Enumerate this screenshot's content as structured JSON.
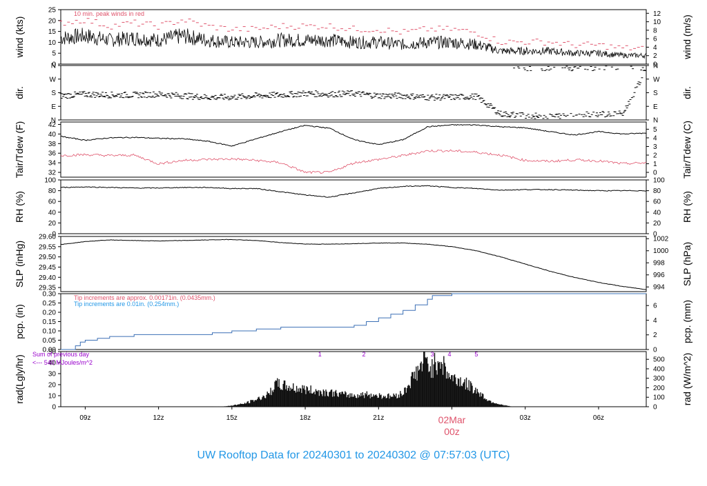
{
  "title": "UW Rooftop Data for 20240301  to  20240302 @ 07:57:03  (UTC)",
  "colors": {
    "axis": "#000000",
    "peak": "#DF536B",
    "dewpoint": "#DF536B",
    "precip": "#2297E6",
    "radiation_note": "#9900CC",
    "title": "#2297E6",
    "date_label": "#DF536B"
  },
  "x_axis": {
    "start_hour": 8.0,
    "end_hour": 31.95,
    "ticks": [
      {
        "hour": 9,
        "label": "09z"
      },
      {
        "hour": 12,
        "label": "12z"
      },
      {
        "hour": 15,
        "label": "15z"
      },
      {
        "hour": 18,
        "label": "18z"
      },
      {
        "hour": 21,
        "label": "21z"
      },
      {
        "hour": 24,
        "label": ""
      },
      {
        "hour": 27,
        "label": "03z"
      },
      {
        "hour": 30,
        "label": "06z"
      }
    ],
    "day_label": "02Mar",
    "day_sub": "00z"
  },
  "panels": {
    "wind": {
      "left_label": "wind (kts)",
      "right_label": "wind (m/s)",
      "left_ticks": [
        "0",
        "5",
        "10",
        "15",
        "20",
        "25"
      ],
      "right_ticks": [
        "0",
        "2",
        "4",
        "6",
        "8",
        "10",
        "12"
      ],
      "note": "10 min. peak winds in red",
      "ylim": [
        0,
        25
      ]
    },
    "dir": {
      "left_label": "dir.",
      "right_label": "dir.",
      "ticks": [
        "N",
        "E",
        "S",
        "W",
        "N"
      ],
      "ylim": [
        0,
        360
      ]
    },
    "temp": {
      "left_label": "Tair/Tdew (F)",
      "right_label": "Tair/Tdew (C)",
      "left_ticks": [
        "32",
        "34",
        "36",
        "38",
        "40",
        "42"
      ],
      "right_ticks": [
        "0",
        "1",
        "2",
        "3",
        "4",
        "5"
      ],
      "ylim": [
        31,
        42.5
      ]
    },
    "rh": {
      "left_label": "RH (%)",
      "right_label": "RH (%)",
      "left_ticks": [
        "0",
        "20",
        "40",
        "60",
        "80",
        "100"
      ],
      "right_ticks": [
        "0",
        "20",
        "40",
        "60",
        "80",
        "100"
      ],
      "ylim": [
        0,
        100
      ]
    },
    "slp": {
      "left_label": "SLP (inHg)",
      "right_label": "SLP (hPa)",
      "left_ticks": [
        "29.35",
        "29.40",
        "29.45",
        "29.50",
        "29.55",
        "29.60"
      ],
      "right_ticks": [
        "994",
        "996",
        "998",
        "1000",
        "1002"
      ],
      "ylim": [
        29.33,
        29.6
      ]
    },
    "pcp": {
      "left_label": "pcp. (in)",
      "right_label": "pcp. (mm)",
      "left_ticks": [
        "0.00",
        "0.05",
        "0.10",
        "0.15",
        "0.20",
        "0.25",
        "0.30"
      ],
      "right_ticks": [
        "0",
        "2",
        "4",
        "6"
      ],
      "note1": "Tip increments are approx. 0.00171in. (0.0435mm.)",
      "note2": "Tip increments are 0.01in. (0.254mm.)",
      "ylim": [
        0,
        0.3
      ]
    },
    "rad": {
      "left_label": "rad(Lgly/hr)",
      "right_label": "rad (W/m^2)",
      "left_ticks": [
        "0",
        "10",
        "20",
        "30",
        "40",
        "50"
      ],
      "right_ticks": [
        "0",
        "100",
        "200",
        "300",
        "400",
        "500"
      ],
      "note1": "Sum of previous day",
      "note2": "<--- 540 MJoules/m^2",
      "markers": [
        "1",
        "2",
        "3",
        "4",
        "5"
      ],
      "ylim": [
        0,
        50
      ]
    }
  },
  "chart_data": [
    {
      "type": "line",
      "title": "",
      "xlabel": "",
      "ylabel": "wind (kts)",
      "ylim": [
        0,
        25
      ],
      "series": [
        {
          "x": [
            8,
            9,
            10,
            11,
            12,
            13,
            14,
            15,
            16,
            17,
            18,
            19,
            20,
            21,
            22,
            23,
            24,
            25,
            26,
            27,
            28,
            29,
            30,
            31,
            31.95
          ],
          "values": [
            12,
            13,
            11,
            12,
            11,
            13,
            11,
            10,
            10,
            11,
            11,
            11,
            10,
            10,
            9,
            10,
            10,
            9,
            6,
            6,
            6,
            5,
            5,
            4,
            4
          ]
        }
      ]
    },
    {
      "type": "scatter",
      "title": "",
      "xlabel": "",
      "ylabel": "dir.",
      "ylim": [
        0,
        360
      ],
      "series": [
        {
          "x": [
            8,
            9,
            10,
            11,
            12,
            13,
            14,
            15,
            16,
            17,
            18,
            19,
            20,
            21,
            22,
            23,
            24,
            25,
            26,
            27,
            28,
            29,
            30,
            31,
            31.95
          ],
          "values": [
            160,
            170,
            165,
            165,
            170,
            160,
            150,
            150,
            160,
            165,
            175,
            170,
            175,
            160,
            160,
            150,
            150,
            155,
            40,
            30,
            20,
            40,
            40,
            40,
            330
          ]
        }
      ]
    },
    {
      "type": "line",
      "title": "",
      "xlabel": "",
      "ylabel": "Tair/Tdew (F)",
      "ylim": [
        31,
        42.5
      ],
      "series": [
        {
          "name": "",
          "x": [
            8,
            9,
            10,
            11,
            12,
            13,
            14,
            15,
            16,
            17,
            18,
            19,
            20,
            21,
            22,
            23,
            24,
            25,
            26,
            27,
            28,
            29,
            30,
            31,
            31.95
          ],
          "values": [
            39.5,
            38.7,
            39.2,
            39.3,
            39.1,
            39.0,
            38.5,
            37.5,
            39.0,
            40.5,
            41.8,
            41.2,
            38.8,
            37.8,
            38.8,
            41.5,
            41.9,
            41.9,
            41.5,
            41.3,
            40.5,
            39.8,
            40.5,
            40.0,
            40.2
          ]
        },
        {
          "name": "",
          "x": [
            8,
            9,
            10,
            11,
            12,
            13,
            14,
            15,
            16,
            17,
            18,
            19,
            20,
            21,
            22,
            23,
            24,
            25,
            26,
            27,
            28,
            29,
            30,
            31,
            31.95
          ],
          "values": [
            35.5,
            35.7,
            35.5,
            35.6,
            33.8,
            34.5,
            34.7,
            34.8,
            34.5,
            34.0,
            32.0,
            32.0,
            34.0,
            34.7,
            35.5,
            36.5,
            36.5,
            36.2,
            35.6,
            34.5,
            34.3,
            34.6,
            34.4,
            33.8,
            34.0
          ]
        }
      ]
    },
    {
      "type": "line",
      "title": "",
      "xlabel": "",
      "ylabel": "RH (%)",
      "ylim": [
        0,
        100
      ],
      "series": [
        {
          "x": [
            8,
            9,
            10,
            11,
            12,
            13,
            14,
            15,
            16,
            17,
            18,
            19,
            20,
            21,
            22,
            23,
            24,
            25,
            26,
            27,
            28,
            29,
            30,
            31,
            31.95
          ],
          "values": [
            86,
            87,
            86,
            85,
            85,
            86,
            86,
            84,
            84,
            78,
            72,
            68,
            76,
            84,
            88,
            89,
            86,
            84,
            81,
            82,
            82,
            81,
            80,
            80,
            80
          ]
        }
      ]
    },
    {
      "type": "line",
      "title": "",
      "xlabel": "",
      "ylabel": "SLP (inHg)",
      "ylim": [
        29.33,
        29.6
      ],
      "series": [
        {
          "x": [
            8,
            9,
            10,
            11,
            12,
            13,
            14,
            15,
            16,
            17,
            18,
            19,
            20,
            21,
            22,
            23,
            24,
            25,
            26,
            27,
            28,
            29,
            30,
            31,
            31.95
          ],
          "values": [
            29.56,
            29.575,
            29.583,
            29.58,
            29.578,
            29.58,
            29.583,
            29.585,
            29.58,
            29.57,
            29.563,
            29.562,
            29.565,
            29.568,
            29.568,
            29.562,
            29.55,
            29.53,
            29.5,
            29.465,
            29.43,
            29.4,
            29.375,
            29.355,
            29.34
          ]
        }
      ]
    },
    {
      "type": "area",
      "title": "",
      "xlabel": "",
      "ylabel": "pcp. (in)",
      "ylim": [
        0,
        0.3
      ],
      "series": [
        {
          "x": [
            8,
            8.3,
            8.6,
            8.8,
            9,
            9.5,
            10,
            11,
            12,
            13,
            14,
            14.2,
            15,
            16,
            17,
            18,
            19,
            20,
            20.5,
            21,
            21.5,
            22,
            22.5,
            23,
            23.2,
            24,
            25,
            26,
            27,
            28,
            29,
            30,
            31,
            31.95
          ],
          "values": [
            0.0,
            0.0,
            0.02,
            0.04,
            0.05,
            0.06,
            0.07,
            0.08,
            0.08,
            0.08,
            0.08,
            0.09,
            0.1,
            0.11,
            0.12,
            0.12,
            0.12,
            0.13,
            0.15,
            0.17,
            0.19,
            0.21,
            0.24,
            0.27,
            0.29,
            0.3,
            0.3,
            0.3,
            0.3,
            0.3,
            0.3,
            0.3,
            0.3,
            0.3
          ]
        }
      ]
    },
    {
      "type": "area",
      "title": "",
      "xlabel": "",
      "ylabel": "rad(Lgly/hr)",
      "ylim": [
        0,
        50
      ],
      "series": [
        {
          "x": [
            8,
            14,
            14.8,
            15.5,
            16,
            16.5,
            16.8,
            17.2,
            17.6,
            18,
            18.5,
            19,
            19.5,
            20,
            20.5,
            21,
            21.5,
            22,
            22.3,
            22.6,
            22.9,
            23.2,
            23.5,
            23.8,
            24,
            24.3,
            24.6,
            25,
            25.5,
            26,
            26.5,
            32
          ],
          "values": [
            0,
            0,
            0.5,
            3,
            7,
            12,
            22,
            20,
            18,
            17,
            15,
            14,
            12,
            11,
            12,
            11,
            10,
            13,
            25,
            35,
            45,
            38,
            48,
            33,
            28,
            26,
            22,
            16,
            6,
            2,
            0,
            0
          ]
        }
      ]
    }
  ]
}
